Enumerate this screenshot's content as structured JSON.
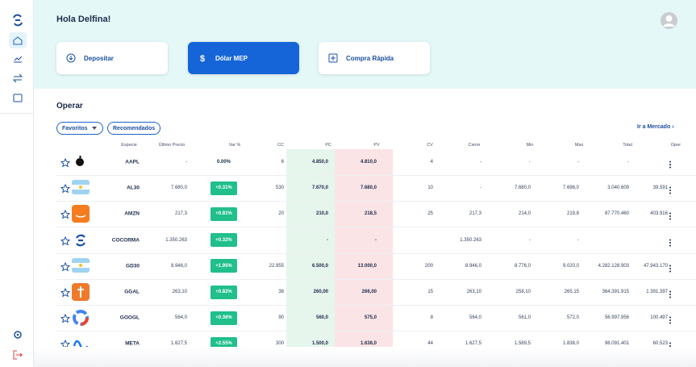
{
  "header": {
    "greeting": "Hola Delfina!"
  },
  "actions": [
    "Depositar",
    "Dólar MEP",
    "Compra Rápida"
  ],
  "section": {
    "title": "Operar",
    "filters": [
      "Favoritos",
      "Recomendados"
    ],
    "link": "Ir a Mercado"
  },
  "table": {
    "columns": [
      "Especie",
      "Último Precio",
      "Var %",
      "CC",
      "PC",
      "PV",
      "CV",
      "Cierre",
      "Min",
      "Max",
      "Total",
      "Oper"
    ],
    "rows": [
      {
        "ticker": "AAPL",
        "cells": [
          "-",
          "0.00%",
          "6",
          "4.850,0",
          "4.810,0",
          "4",
          "-",
          "-",
          "-",
          "-",
          null
        ]
      },
      {
        "ticker": "AL30",
        "cells": [
          "7.680,0",
          "+0.31%",
          "530",
          "7.670,0",
          "7.680,0",
          "10",
          "-",
          "7.680,0",
          "7.696,0",
          "3.040.609",
          "39.591"
        ]
      },
      {
        "ticker": "AMZN",
        "cells": [
          "217,3",
          "+0.81%",
          "20",
          "210,0",
          "218,5",
          "25",
          "217,3",
          "214,0",
          "219,8",
          "87.770.460",
          "403.916"
        ]
      },
      {
        "ticker": "COCORMA",
        "cells": [
          "1.350.263",
          "+0.32%",
          null,
          "-",
          "-",
          null,
          "1.350.263",
          "-",
          "-",
          null,
          null
        ]
      },
      {
        "ticker": "GD30",
        "cells": [
          "8.946,0",
          "+1.95%",
          "22.955",
          "6.500,0",
          "13.000,0",
          "200",
          "8.946,0",
          "8.776,0",
          "9.020,0",
          "4.282.128.903",
          "47.943.170"
        ]
      },
      {
        "ticker": "GGAL",
        "cells": [
          "263,10",
          "+0.82%",
          "38",
          "260,00",
          "266,00",
          "15",
          "263,10",
          "258,10",
          "265,15",
          "364.391.915",
          "1.391.397"
        ]
      },
      {
        "ticker": "GOOGL",
        "cells": [
          "564,0",
          "+0.36%",
          "90",
          "560,0",
          "575,0",
          "8",
          "564,0",
          "561,0",
          "572,0",
          "56.997.956",
          "100.497"
        ]
      },
      {
        "ticker": "META",
        "cells": [
          "1.627,5",
          "+2.55%",
          "300",
          "1.500,0",
          "1.638,0",
          "44",
          "1.627,5",
          "1.589,5",
          "1.838,0",
          "98.091.401",
          "60.523"
        ]
      }
    ]
  }
}
